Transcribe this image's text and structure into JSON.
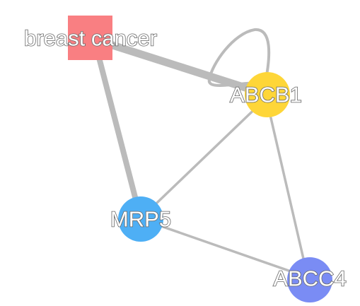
{
  "graph": {
    "edge_color": "#bbbbbb",
    "nodes": [
      {
        "id": "breast-cancer",
        "label": "breast cancer",
        "shape": "square",
        "color": "#f97f82"
      },
      {
        "id": "abcb1",
        "label": "ABCB1",
        "shape": "circle",
        "color": "#fed638"
      },
      {
        "id": "mrp5",
        "label": "MRP5",
        "shape": "circle",
        "color": "#4eaff5"
      },
      {
        "id": "abcc4",
        "label": "ABCC4",
        "shape": "circle",
        "color": "#7a8cf4"
      }
    ],
    "edges": [
      {
        "source": "breast-cancer",
        "target": "abcb1",
        "weight": "heavy"
      },
      {
        "source": "breast-cancer",
        "target": "mrp5",
        "weight": "medium"
      },
      {
        "source": "abcb1",
        "target": "abcb1",
        "weight": "light"
      },
      {
        "source": "abcb1",
        "target": "mrp5",
        "weight": "light"
      },
      {
        "source": "abcb1",
        "target": "abcc4",
        "weight": "light"
      },
      {
        "source": "mrp5",
        "target": "abcc4",
        "weight": "light"
      }
    ]
  }
}
